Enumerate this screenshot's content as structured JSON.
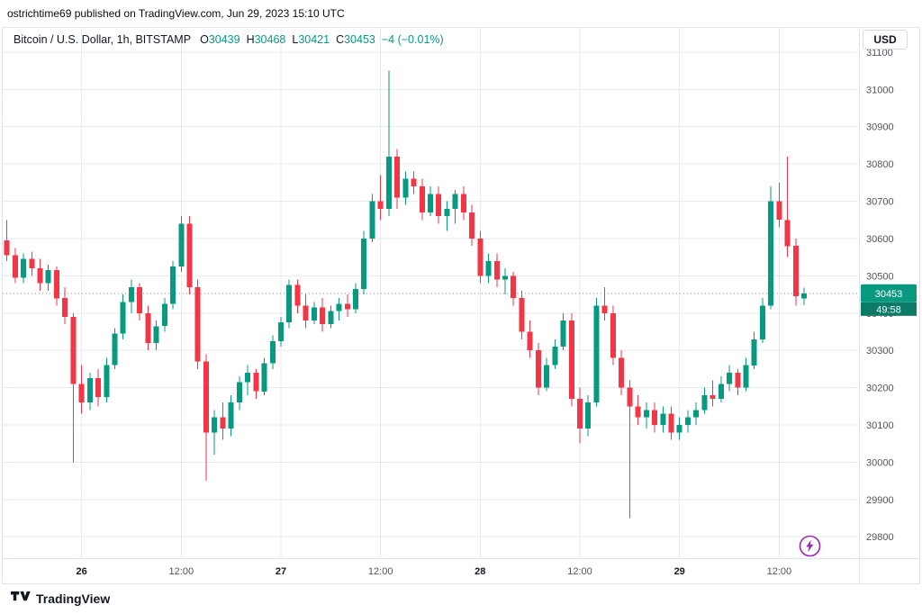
{
  "annotation": "ostrichtime69 published on TradingView.com, Jun 29, 2023 15:10 UTC",
  "legend": {
    "title": "Bitcoin / U.S. Dollar, 1h, BITSTAMP",
    "items": [
      {
        "label": "O",
        "value": "30439"
      },
      {
        "label": "H",
        "value": "30468"
      },
      {
        "label": "L",
        "value": "30421"
      },
      {
        "label": "C",
        "value": "30453"
      }
    ],
    "change": "−4 (−0.01%)"
  },
  "price_scale": {
    "currency": "USD",
    "current_price": "30453",
    "countdown": "49:58"
  },
  "footer": {
    "brand": "TradingView"
  },
  "colors": {
    "up": "#089981",
    "down": "#f23645",
    "grid": "#e7eaf0",
    "countdown_bg": "#0b7a66",
    "boost": "#9c27b0"
  },
  "chart_data": {
    "type": "candlestick",
    "title": "Bitcoin / U.S. Dollar",
    "interval": "1h",
    "exchange": "BITSTAMP",
    "grid": true,
    "price_axis_side": "right",
    "ylim": [
      29745,
      31165
    ],
    "y_ticks": [
      29800,
      29900,
      30000,
      30100,
      30200,
      30300,
      30400,
      30500,
      30600,
      30700,
      30800,
      30900,
      31000,
      31100
    ],
    "current": {
      "open": 30439,
      "high": 30468,
      "low": 30421,
      "close": 30453,
      "change": "−4",
      "change_pct": "−0.01%"
    },
    "time_ticks": [
      {
        "index": 9,
        "label": "26",
        "major": true
      },
      {
        "index": 21,
        "label": "12:00",
        "major": false
      },
      {
        "index": 33,
        "label": "27",
        "major": true
      },
      {
        "index": 45,
        "label": "12:00",
        "major": false
      },
      {
        "index": 57,
        "label": "28",
        "major": true
      },
      {
        "index": 69,
        "label": "12:00",
        "major": false
      },
      {
        "index": 81,
        "label": "29",
        "major": true
      },
      {
        "index": 93,
        "label": "12:00",
        "major": false
      }
    ],
    "candles": [
      [
        30595,
        30650,
        30540,
        30555
      ],
      [
        30555,
        30575,
        30480,
        30495
      ],
      [
        30495,
        30560,
        30480,
        30545
      ],
      [
        30545,
        30565,
        30500,
        30520
      ],
      [
        30520,
        30545,
        30460,
        30480
      ],
      [
        30480,
        30530,
        30460,
        30515
      ],
      [
        30515,
        30525,
        30420,
        30440
      ],
      [
        30440,
        30470,
        30370,
        30390
      ],
      [
        30390,
        30400,
        30000,
        30210
      ],
      [
        30210,
        30260,
        30130,
        30160
      ],
      [
        30160,
        30240,
        30140,
        30225
      ],
      [
        30225,
        30250,
        30150,
        30175
      ],
      [
        30175,
        30280,
        30160,
        30260
      ],
      [
        30260,
        30360,
        30250,
        30345
      ],
      [
        30345,
        30450,
        30330,
        30430
      ],
      [
        30430,
        30490,
        30400,
        30470
      ],
      [
        30470,
        30480,
        30380,
        30400
      ],
      [
        30400,
        30420,
        30300,
        30320
      ],
      [
        30320,
        30380,
        30300,
        30365
      ],
      [
        30365,
        30440,
        30350,
        30425
      ],
      [
        30425,
        30540,
        30410,
        30525
      ],
      [
        30525,
        30660,
        30510,
        30640
      ],
      [
        30640,
        30660,
        30450,
        30470
      ],
      [
        30470,
        30490,
        30250,
        30270
      ],
      [
        30270,
        30290,
        29950,
        30080
      ],
      [
        30080,
        30140,
        30020,
        30120
      ],
      [
        30120,
        30160,
        30060,
        30090
      ],
      [
        30090,
        30180,
        30070,
        30160
      ],
      [
        30160,
        30230,
        30140,
        30215
      ],
      [
        30215,
        30260,
        30180,
        30240
      ],
      [
        30240,
        30250,
        30170,
        30190
      ],
      [
        30190,
        30280,
        30180,
        30265
      ],
      [
        30265,
        30340,
        30250,
        30325
      ],
      [
        30325,
        30390,
        30310,
        30375
      ],
      [
        30375,
        30490,
        30360,
        30475
      ],
      [
        30475,
        30490,
        30400,
        30420
      ],
      [
        30420,
        30450,
        30360,
        30380
      ],
      [
        30380,
        30430,
        30370,
        30415
      ],
      [
        30415,
        30440,
        30350,
        30370
      ],
      [
        30370,
        30420,
        30360,
        30405
      ],
      [
        30405,
        30440,
        30380,
        30425
      ],
      [
        30425,
        30450,
        30390,
        30410
      ],
      [
        30410,
        30480,
        30400,
        30465
      ],
      [
        30465,
        30620,
        30450,
        30600
      ],
      [
        30600,
        30720,
        30590,
        30700
      ],
      [
        30700,
        30770,
        30650,
        30680
      ],
      [
        30680,
        31050,
        30660,
        30820
      ],
      [
        30820,
        30840,
        30680,
        30710
      ],
      [
        30710,
        30780,
        30690,
        30760
      ],
      [
        30760,
        30780,
        30720,
        30740
      ],
      [
        30740,
        30760,
        30650,
        30670
      ],
      [
        30670,
        30740,
        30660,
        30720
      ],
      [
        30720,
        30740,
        30640,
        30660
      ],
      [
        30660,
        30700,
        30620,
        30680
      ],
      [
        30680,
        30730,
        30640,
        30720
      ],
      [
        30720,
        30740,
        30650,
        30670
      ],
      [
        30670,
        30690,
        30580,
        30600
      ],
      [
        30600,
        30620,
        30480,
        30500
      ],
      [
        30500,
        30560,
        30480,
        30540
      ],
      [
        30540,
        30560,
        30470,
        30490
      ],
      [
        30490,
        30520,
        30450,
        30500
      ],
      [
        30500,
        30510,
        30420,
        30440
      ],
      [
        30440,
        30460,
        30330,
        30350
      ],
      [
        30350,
        30380,
        30280,
        30300
      ],
      [
        30300,
        30320,
        30180,
        30200
      ],
      [
        30200,
        30280,
        30190,
        30260
      ],
      [
        30260,
        30330,
        30250,
        30310
      ],
      [
        30310,
        30400,
        30300,
        30380
      ],
      [
        30380,
        30400,
        30150,
        30170
      ],
      [
        30170,
        30200,
        30050,
        30090
      ],
      [
        30090,
        30180,
        30070,
        30160
      ],
      [
        30160,
        30440,
        30150,
        30420
      ],
      [
        30420,
        30470,
        30380,
        30400
      ],
      [
        30400,
        30420,
        30260,
        30280
      ],
      [
        30280,
        30300,
        30180,
        30200
      ],
      [
        30200,
        30220,
        29850,
        30150
      ],
      [
        30150,
        30180,
        30100,
        30120
      ],
      [
        30120,
        30160,
        30090,
        30140
      ],
      [
        30140,
        30160,
        30080,
        30100
      ],
      [
        30100,
        30150,
        30080,
        30130
      ],
      [
        30130,
        30150,
        30060,
        30080
      ],
      [
        30080,
        30120,
        30060,
        30100
      ],
      [
        30100,
        30140,
        30080,
        30120
      ],
      [
        30120,
        30160,
        30100,
        30140
      ],
      [
        30140,
        30200,
        30130,
        30180
      ],
      [
        30180,
        30220,
        30150,
        30170
      ],
      [
        30170,
        30230,
        30160,
        30210
      ],
      [
        30210,
        30260,
        30190,
        30240
      ],
      [
        30240,
        30250,
        30180,
        30200
      ],
      [
        30200,
        30280,
        30190,
        30260
      ],
      [
        30260,
        30350,
        30250,
        30330
      ],
      [
        30330,
        30440,
        30320,
        30420
      ],
      [
        30420,
        30740,
        30410,
        30700
      ],
      [
        30700,
        30750,
        30630,
        30650
      ],
      [
        30650,
        30820,
        30550,
        30580
      ],
      [
        30580,
        30600,
        30420,
        30445
      ],
      [
        30439,
        30468,
        30421,
        30453
      ]
    ]
  }
}
